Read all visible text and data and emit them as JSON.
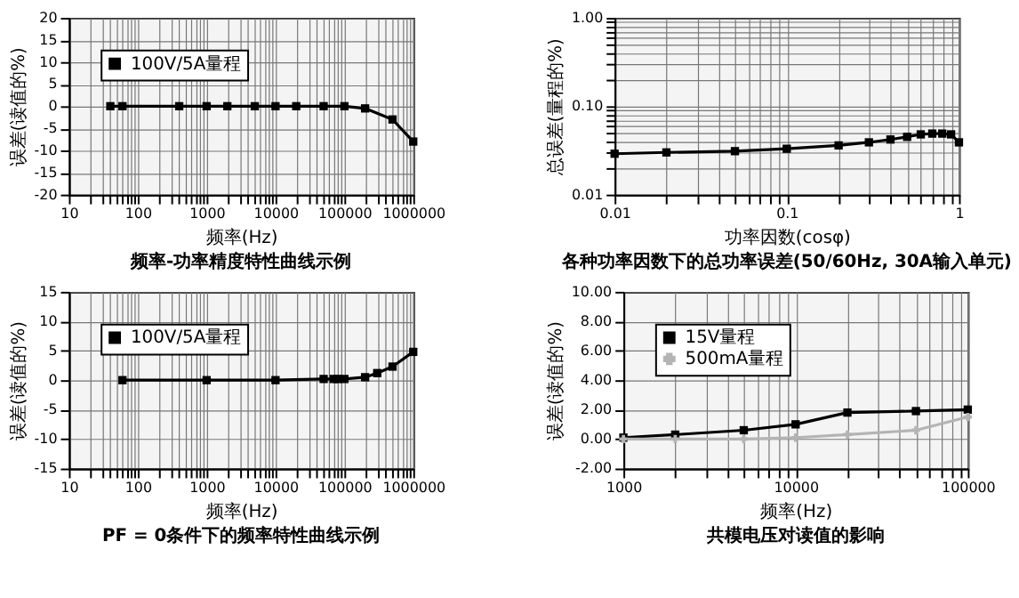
{
  "chart_data": [
    {
      "type": "line",
      "title": "频率-功率精度特性曲线示例",
      "xlabel": "频率(Hz)",
      "ylabel": "误差(读值的%)",
      "log": "x",
      "grid": true,
      "legend": "top left",
      "marker": "square",
      "line_style": "solid",
      "xlim": [
        10,
        1000000
      ],
      "ylim": [
        -20,
        20
      ],
      "yticks": [
        -20,
        -15,
        -10,
        -5,
        0,
        5,
        10,
        15,
        20
      ],
      "xticks": [
        10,
        {
          "value": 20,
          "label": null
        },
        {
          "value": 30,
          "label": null
        },
        {
          "value": 40,
          "label": null
        },
        {
          "value": 50,
          "label": null
        },
        {
          "value": 60,
          "label": null
        },
        {
          "value": 70,
          "label": null
        },
        {
          "value": 80,
          "label": null
        },
        {
          "value": 90,
          "label": null
        },
        100,
        {
          "value": 200,
          "label": null
        },
        {
          "value": 300,
          "label": null
        },
        {
          "value": 400,
          "label": null
        },
        {
          "value": 500,
          "label": null
        },
        {
          "value": 600,
          "label": null
        },
        {
          "value": 700,
          "label": null
        },
        {
          "value": 800,
          "label": null
        },
        {
          "value": 900,
          "label": null
        },
        1000,
        {
          "value": 2000,
          "label": null
        },
        {
          "value": 3000,
          "label": null
        },
        {
          "value": 4000,
          "label": null
        },
        {
          "value": 5000,
          "label": null
        },
        {
          "value": 6000,
          "label": null
        },
        {
          "value": 7000,
          "label": null
        },
        {
          "value": 8000,
          "label": null
        },
        {
          "value": 9000,
          "label": null
        },
        10000,
        {
          "value": 20000,
          "label": null
        },
        {
          "value": 30000,
          "label": null
        },
        {
          "value": 40000,
          "label": null
        },
        {
          "value": 50000,
          "label": null
        },
        {
          "value": 60000,
          "label": null
        },
        {
          "value": 70000,
          "label": null
        },
        {
          "value": 80000,
          "label": null
        },
        {
          "value": 90000,
          "label": null
        },
        100000,
        {
          "value": 200000,
          "label": null
        },
        {
          "value": 300000,
          "label": null
        },
        {
          "value": 400000,
          "label": null
        },
        {
          "value": 500000,
          "label": null
        },
        {
          "value": 600000,
          "label": null
        },
        {
          "value": 700000,
          "label": null
        },
        {
          "value": 800000,
          "label": null
        },
        {
          "value": 900000,
          "label": null
        },
        1000000
      ],
      "x": [
        40,
        60,
        400,
        1000,
        2000,
        5000,
        10000,
        20000,
        50000,
        100000,
        200000,
        500000,
        1000000
      ],
      "series": [
        {
          "name": "100V/5A量程",
          "color": "#000000",
          "values": [
            0,
            0,
            0,
            0,
            0,
            0,
            0,
            0,
            0,
            0,
            -0.5,
            -3,
            -8
          ]
        }
      ]
    },
    {
      "type": "line",
      "title": "各种功率因数下的总功率误差(50/60Hz, 30A输入单元)",
      "xlabel": "功率因数(cosφ)",
      "ylabel": "总误差(量程的%)",
      "log": "xy",
      "grid": true,
      "legend": false,
      "marker": "square",
      "line_style": "solid",
      "xlim": [
        0.01,
        1
      ],
      "ylim": [
        0.01,
        1
      ],
      "xticks": [
        0.01,
        {
          "value": 0.02,
          "label": null
        },
        {
          "value": 0.03,
          "label": null
        },
        {
          "value": 0.04,
          "label": null
        },
        {
          "value": 0.05,
          "label": null
        },
        {
          "value": 0.06,
          "label": null
        },
        {
          "value": 0.07,
          "label": null
        },
        {
          "value": 0.08,
          "label": null
        },
        {
          "value": 0.09,
          "label": null
        },
        0.1,
        {
          "value": 0.2,
          "label": null
        },
        {
          "value": 0.3,
          "label": null
        },
        {
          "value": 0.4,
          "label": null
        },
        {
          "value": 0.5,
          "label": null
        },
        {
          "value": 0.6,
          "label": null
        },
        {
          "value": 0.7,
          "label": null
        },
        {
          "value": 0.8,
          "label": null
        },
        {
          "value": 0.9,
          "label": null
        },
        1
      ],
      "yticks": [
        {
          "value": 0.01,
          "label": "0.01"
        },
        {
          "value": 0.02,
          "label": null
        },
        {
          "value": 0.03,
          "label": null
        },
        {
          "value": 0.04,
          "label": null
        },
        {
          "value": 0.05,
          "label": null
        },
        {
          "value": 0.06,
          "label": null
        },
        {
          "value": 0.07,
          "label": null
        },
        {
          "value": 0.08,
          "label": null
        },
        {
          "value": 0.09,
          "label": null
        },
        {
          "value": 0.1,
          "label": "0.10"
        },
        {
          "value": 0.2,
          "label": null
        },
        {
          "value": 0.3,
          "label": null
        },
        {
          "value": 0.4,
          "label": null
        },
        {
          "value": 0.5,
          "label": null
        },
        {
          "value": 0.6,
          "label": null
        },
        {
          "value": 0.7,
          "label": null
        },
        {
          "value": 0.8,
          "label": null
        },
        {
          "value": 0.9,
          "label": null
        },
        {
          "value": 1,
          "label": "1.00"
        }
      ],
      "x": [
        0.01,
        0.02,
        0.05,
        0.1,
        0.2,
        0.3,
        0.4,
        0.5,
        0.6,
        0.7,
        0.8,
        0.9,
        1
      ],
      "series": [
        {
          "color": "#000000",
          "values": [
            0.029,
            0.03,
            0.031,
            0.033,
            0.036,
            0.039,
            0.042,
            0.045,
            0.048,
            0.049,
            0.049,
            0.048,
            0.039
          ]
        }
      ]
    },
    {
      "type": "line",
      "title": "PF = 0条件下的频率特性曲线示例",
      "xlabel": "频率(Hz)",
      "ylabel": "误差(读值的%)",
      "log": "x",
      "grid": true,
      "legend": "top left",
      "marker": "square",
      "line_style": "solid",
      "xlim": [
        10,
        1000000
      ],
      "ylim": [
        -15,
        15
      ],
      "yticks": [
        -15,
        -10,
        -5,
        0,
        5,
        10,
        15
      ],
      "xticks": [
        10,
        {
          "value": 20,
          "label": null
        },
        {
          "value": 30,
          "label": null
        },
        {
          "value": 40,
          "label": null
        },
        {
          "value": 50,
          "label": null
        },
        {
          "value": 60,
          "label": null
        },
        {
          "value": 70,
          "label": null
        },
        {
          "value": 80,
          "label": null
        },
        {
          "value": 90,
          "label": null
        },
        100,
        {
          "value": 200,
          "label": null
        },
        {
          "value": 300,
          "label": null
        },
        {
          "value": 400,
          "label": null
        },
        {
          "value": 500,
          "label": null
        },
        {
          "value": 600,
          "label": null
        },
        {
          "value": 700,
          "label": null
        },
        {
          "value": 800,
          "label": null
        },
        {
          "value": 900,
          "label": null
        },
        1000,
        {
          "value": 2000,
          "label": null
        },
        {
          "value": 3000,
          "label": null
        },
        {
          "value": 4000,
          "label": null
        },
        {
          "value": 5000,
          "label": null
        },
        {
          "value": 6000,
          "label": null
        },
        {
          "value": 7000,
          "label": null
        },
        {
          "value": 8000,
          "label": null
        },
        {
          "value": 9000,
          "label": null
        },
        10000,
        {
          "value": 20000,
          "label": null
        },
        {
          "value": 30000,
          "label": null
        },
        {
          "value": 40000,
          "label": null
        },
        {
          "value": 50000,
          "label": null
        },
        {
          "value": 60000,
          "label": null
        },
        {
          "value": 70000,
          "label": null
        },
        {
          "value": 80000,
          "label": null
        },
        {
          "value": 90000,
          "label": null
        },
        100000,
        {
          "value": 200000,
          "label": null
        },
        {
          "value": 300000,
          "label": null
        },
        {
          "value": 400000,
          "label": null
        },
        {
          "value": 500000,
          "label": null
        },
        {
          "value": 600000,
          "label": null
        },
        {
          "value": 700000,
          "label": null
        },
        {
          "value": 800000,
          "label": null
        },
        {
          "value": 900000,
          "label": null
        },
        1000000
      ],
      "x": [
        60,
        1000,
        10000,
        50000,
        70000,
        80000,
        100000,
        200000,
        300000,
        500000,
        1000000
      ],
      "series": [
        {
          "name": "100V/5A量程",
          "color": "#000000",
          "values": [
            0,
            0,
            0,
            0.2,
            0.2,
            0.2,
            0.2,
            0.5,
            1.2,
            2.3,
            4.8
          ]
        }
      ]
    },
    {
      "type": "line",
      "title": "共模电压对读值的影响",
      "xlabel": "频率(Hz)",
      "ylabel": "误差(读值的%)",
      "log": "x",
      "grid": true,
      "legend": "top left",
      "line_style": "solid",
      "xlim": [
        1000,
        100000
      ],
      "ylim": [
        -2,
        10
      ],
      "yticks": [
        {
          "value": -2,
          "label": "-2.00"
        },
        {
          "value": 0,
          "label": "0.00"
        },
        {
          "value": 2,
          "label": "2.00"
        },
        {
          "value": 4,
          "label": "4.00"
        },
        {
          "value": 6,
          "label": "6.00"
        },
        {
          "value": 8,
          "label": "8.00"
        },
        {
          "value": 10,
          "label": "10.00"
        }
      ],
      "xticks": [
        1000,
        {
          "value": 2000,
          "label": null
        },
        {
          "value": 3000,
          "label": null
        },
        {
          "value": 4000,
          "label": null
        },
        {
          "value": 5000,
          "label": null
        },
        {
          "value": 6000,
          "label": null
        },
        {
          "value": 7000,
          "label": null
        },
        {
          "value": 8000,
          "label": null
        },
        {
          "value": 9000,
          "label": null
        },
        10000,
        {
          "value": 20000,
          "label": null
        },
        {
          "value": 30000,
          "label": null
        },
        {
          "value": 40000,
          "label": null
        },
        {
          "value": 50000,
          "label": null
        },
        {
          "value": 60000,
          "label": null
        },
        {
          "value": 70000,
          "label": null
        },
        {
          "value": 80000,
          "label": null
        },
        {
          "value": 90000,
          "label": null
        },
        100000
      ],
      "x": [
        1000,
        2000,
        5000,
        10000,
        20000,
        50000,
        100000
      ],
      "series": [
        {
          "name": "15V量程",
          "color": "#000000",
          "marker": "square",
          "values": [
            0.1,
            0.3,
            0.6,
            1.0,
            1.8,
            1.9,
            2.0
          ]
        },
        {
          "name": "500mA量程",
          "color": "#b4b4b4",
          "marker": "cross",
          "values": [
            0.0,
            0.0,
            0.0,
            0.1,
            0.3,
            0.6,
            1.5
          ]
        }
      ]
    }
  ]
}
